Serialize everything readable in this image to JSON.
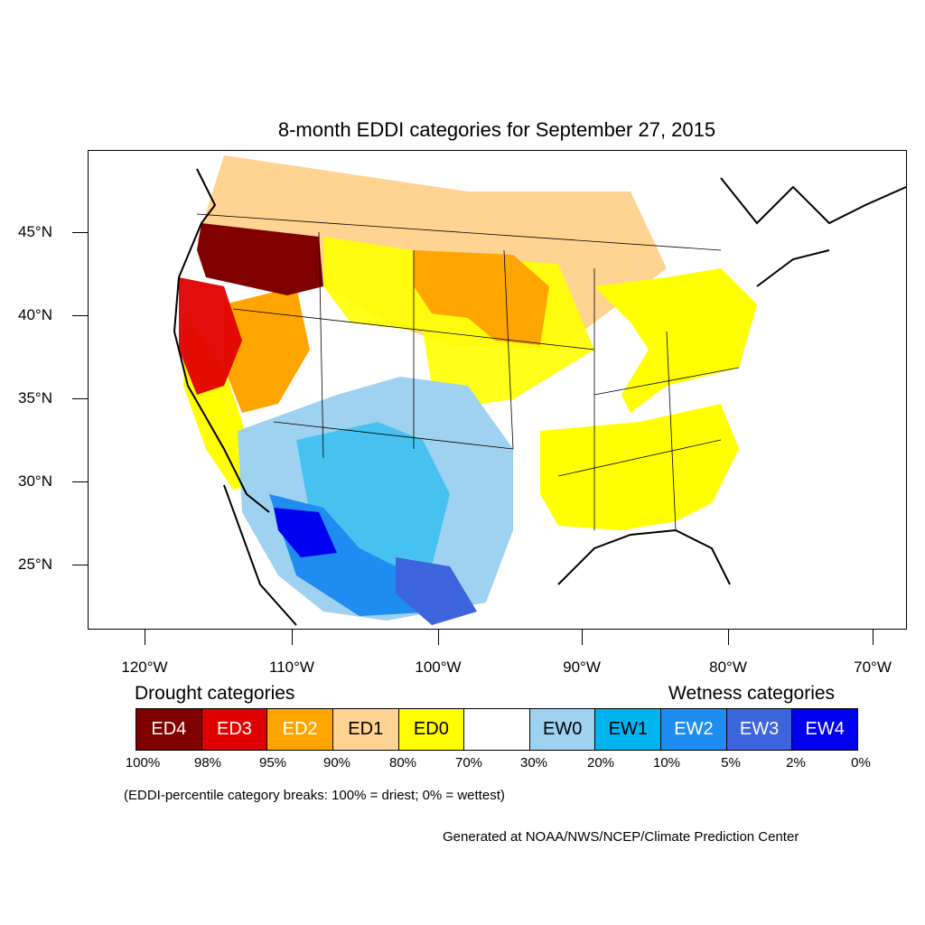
{
  "title": "8-month EDDI categories for September 27, 2015",
  "lat_labels": [
    "45°N",
    "40°N",
    "35°N",
    "30°N",
    "25°N"
  ],
  "lon_labels": [
    "120°W",
    "110°W",
    "100°W",
    "90°W",
    "80°W",
    "70°W"
  ],
  "legend": {
    "drought_heading": "Drought categories",
    "wetness_heading": "Wetness categories",
    "categories": [
      {
        "label": "ED4",
        "color": "#800000",
        "text_color": "#ffffff"
      },
      {
        "label": "ED3",
        "color": "#e00000",
        "text_color": "#ffffff"
      },
      {
        "label": "ED2",
        "color": "#ffa500",
        "text_color": "#ffffff"
      },
      {
        "label": "ED1",
        "color": "#ffd391",
        "text_color": "#000000"
      },
      {
        "label": "ED0",
        "color": "#ffff00",
        "text_color": "#000000"
      },
      {
        "label": "",
        "color": "#ffffff",
        "text_color": "#000000"
      },
      {
        "label": "EW0",
        "color": "#9ed2f0",
        "text_color": "#000000"
      },
      {
        "label": "EW1",
        "color": "#00b4f0",
        "text_color": "#000000"
      },
      {
        "label": "EW2",
        "color": "#1e8cf0",
        "text_color": "#ffffff"
      },
      {
        "label": "EW3",
        "color": "#3c64dc",
        "text_color": "#ffffff"
      },
      {
        "label": "EW4",
        "color": "#0000f0",
        "text_color": "#ffffff"
      }
    ],
    "percent_breaks": [
      "100%",
      "98%",
      "95%",
      "90%",
      "80%",
      "70%",
      "30%",
      "20%",
      "10%",
      "5%",
      "2%",
      "0%"
    ]
  },
  "note": "(EDDI-percentile category breaks: 100% = driest; 0% = wettest)",
  "credit": "Generated at NOAA/NWS/NCEP/Climate Prediction Center"
}
